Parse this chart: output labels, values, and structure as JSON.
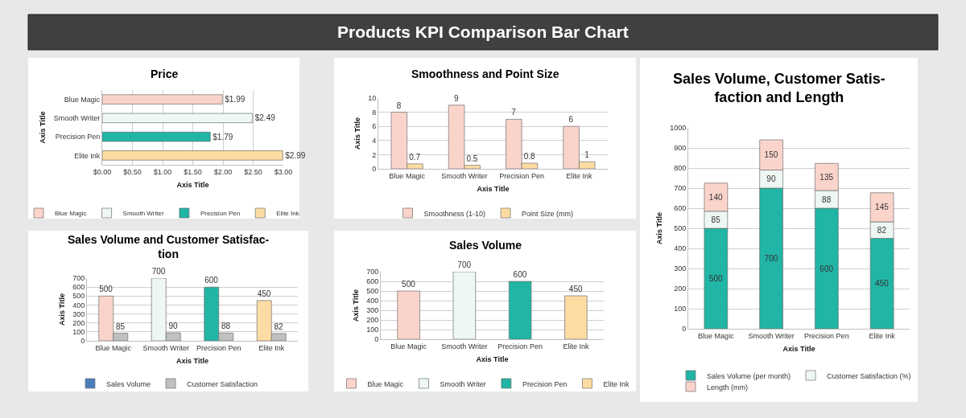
{
  "chart_data": [
    {
      "type": "other",
      "title": "Products KPI Comparison Bar Chart"
    },
    {
      "type": "bar",
      "orientation": "horizontal",
      "title": "Price",
      "xlabel": "Axis Title",
      "ylabel": "Axis Title",
      "categories": [
        "Blue Magic",
        "Smooth Writer",
        "Precision Pen",
        "Elite Ink"
      ],
      "series": [
        {
          "name": "Blue Magic",
          "color": "#fad4cb",
          "values": [
            1.99,
            null,
            null,
            null
          ],
          "value_labels": [
            "$1.99",
            null,
            null,
            null
          ]
        },
        {
          "name": "Smooth Writer",
          "color": "#eef7f2",
          "values": [
            null,
            2.49,
            null,
            null
          ],
          "value_labels": [
            null,
            "$2.49",
            null,
            null
          ]
        },
        {
          "name": "Precision Pen",
          "color": "#20b5a5",
          "values": [
            null,
            null,
            1.79,
            null
          ],
          "value_labels": [
            null,
            null,
            "$1.79",
            null
          ]
        },
        {
          "name": "Elite Ink",
          "color": "#fddca4",
          "values": [
            null,
            null,
            null,
            2.99
          ],
          "value_labels": [
            null,
            null,
            null,
            "$2.99"
          ]
        }
      ],
      "xlim": [
        0,
        3
      ],
      "xticks": [
        {
          "value": 0,
          "label": "$0.00"
        },
        {
          "value": 0.5,
          "label": "$0.50"
        },
        {
          "value": 1,
          "label": "$1.00"
        },
        {
          "value": 1.5,
          "label": "$1.50"
        },
        {
          "value": 2,
          "label": "$2.00"
        },
        {
          "value": 2.5,
          "label": "$2.50"
        },
        {
          "value": 3,
          "label": "$3.00"
        }
      ],
      "grid": "x",
      "legend": "bottom"
    },
    {
      "type": "bar",
      "title": "Smoothness and Point Size",
      "xlabel": "Axis Title",
      "ylabel": "Axis Title",
      "categories": [
        "Blue Magic",
        "Smooth Writer",
        "Precision Pen",
        "Elite Ink"
      ],
      "series": [
        {
          "name": "Smoothness (1-10)",
          "color": "#fad4cb",
          "values": [
            8,
            9,
            7,
            6
          ]
        },
        {
          "name": "Point Size (mm)",
          "color": "#fddca4",
          "values": [
            0.7,
            0.5,
            0.8,
            1
          ]
        }
      ],
      "ylim": [
        0,
        10
      ],
      "yticks": [
        0,
        2,
        4,
        6,
        8,
        10
      ],
      "grid": "y",
      "legend": "bottom",
      "data_labels": true
    },
    {
      "type": "bar",
      "stacked": true,
      "title": "Sales Volume, Customer Satis-\nfaction and Length",
      "xlabel": "Axis Title",
      "ylabel": "Axis Title",
      "categories": [
        "Blue Magic",
        "Smooth Writer",
        "Precision Pen",
        "Elite Ink"
      ],
      "series": [
        {
          "name": "Sales Volume (per month)",
          "color": "#20b5a5",
          "values": [
            500,
            700,
            600,
            450
          ]
        },
        {
          "name": "Customer Satisfaction (%)",
          "color": "#eef7f2",
          "values": [
            85,
            90,
            88,
            82
          ]
        },
        {
          "name": "Length (mm)",
          "color": "#fad4cb",
          "values": [
            140,
            150,
            135,
            145
          ]
        }
      ],
      "ylim": [
        0,
        1000
      ],
      "yticks": [
        0,
        100,
        200,
        300,
        400,
        500,
        600,
        700,
        800,
        900,
        1000
      ],
      "grid": "y",
      "legend": "bottom",
      "data_labels": true
    },
    {
      "type": "bar",
      "title": "Sales Volume and Customer Satisfac-\ntion",
      "xlabel": "Axis Title",
      "ylabel": "Axis Title",
      "categories": [
        "Blue Magic",
        "Smooth Writer",
        "Precision Pen",
        "Elite Ink"
      ],
      "series": [
        {
          "name": "Sales Volume",
          "color": "#4a7ebb",
          "colors": [
            "#fad4cb",
            "#eef7f2",
            "#20b5a5",
            "#fddca4"
          ],
          "values": [
            500,
            700,
            600,
            450
          ]
        },
        {
          "name": "Customer Satisfaction",
          "color": "#c0c0c0",
          "values": [
            85,
            90,
            88,
            82
          ]
        }
      ],
      "ylim": [
        0,
        700
      ],
      "yticks": [
        0,
        100,
        200,
        300,
        400,
        500,
        600,
        700
      ],
      "grid": "y",
      "legend": "bottom",
      "data_labels": true
    },
    {
      "type": "bar",
      "title": "Sales Volume",
      "xlabel": "Axis Title",
      "ylabel": "Axis Title",
      "categories": [
        "Blue Magic",
        "Smooth Writer",
        "Precision Pen",
        "Elite Ink"
      ],
      "series": [
        {
          "name": "Blue Magic",
          "color": "#fad4cb",
          "values": [
            500,
            null,
            null,
            null
          ]
        },
        {
          "name": "Smooth Writer",
          "color": "#eef7f2",
          "values": [
            null,
            700,
            null,
            null
          ]
        },
        {
          "name": "Precision Pen",
          "color": "#20b5a5",
          "values": [
            null,
            null,
            600,
            null
          ]
        },
        {
          "name": "Elite Ink",
          "color": "#fddca4",
          "values": [
            null,
            null,
            null,
            450
          ]
        }
      ],
      "ylim": [
        0,
        700
      ],
      "yticks": [
        0,
        100,
        200,
        300,
        400,
        500,
        600,
        700
      ],
      "grid": "y",
      "legend": "bottom",
      "data_labels": true
    }
  ]
}
